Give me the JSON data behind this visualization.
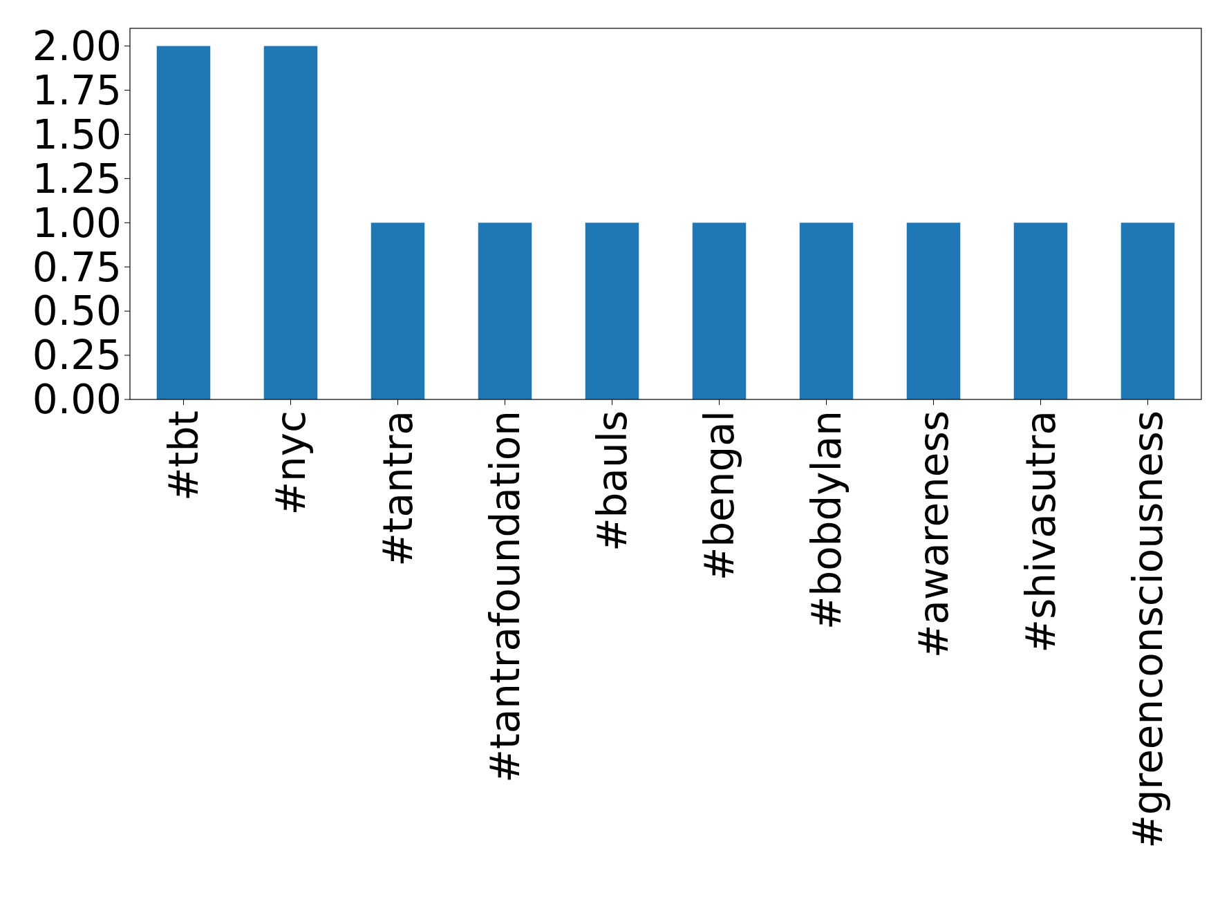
{
  "chart_data": {
    "type": "bar",
    "categories": [
      "#tbt",
      "#nyc",
      "#tantra",
      "#tantrafoundation",
      "#bauls",
      "#bengal",
      "#bobdylan",
      "#awareness",
      "#shivasutra",
      "#greenconsciousness"
    ],
    "values": [
      2,
      2,
      1,
      1,
      1,
      1,
      1,
      1,
      1,
      1
    ],
    "color": "#1f77b4",
    "ylim": [
      0,
      2.1
    ],
    "yticks": [
      {
        "value": 0,
        "label": "0.00"
      },
      {
        "value": 0.25,
        "label": "0.25"
      },
      {
        "value": 0.5,
        "label": "0.50"
      },
      {
        "value": 0.75,
        "label": "0.75"
      },
      {
        "value": 1,
        "label": "1.00"
      },
      {
        "value": 1.25,
        "label": "1.25"
      },
      {
        "value": 1.5,
        "label": "1.50"
      },
      {
        "value": 1.75,
        "label": "1.75"
      },
      {
        "value": 2,
        "label": "2.00"
      }
    ],
    "grid": false
  }
}
